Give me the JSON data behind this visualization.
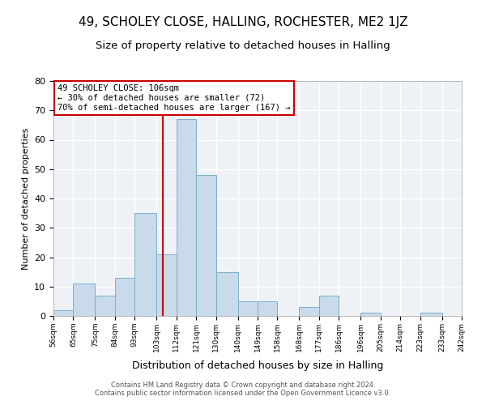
{
  "title": "49, SCHOLEY CLOSE, HALLING, ROCHESTER, ME2 1JZ",
  "subtitle": "Size of property relative to detached houses in Halling",
  "xlabel": "Distribution of detached houses by size in Halling",
  "ylabel": "Number of detached properties",
  "bar_color": "#c9daea",
  "bar_edge_color": "#7aafc8",
  "bg_color": "#eef2f7",
  "grid_color": "#ffffff",
  "vline_x": 106,
  "vline_color": "#cc0000",
  "annotation_line1": "49 SCHOLEY CLOSE: 106sqm",
  "annotation_line2": "← 30% of detached houses are smaller (72)",
  "annotation_line3": "70% of semi-detached houses are larger (167) →",
  "annotation_box_color": "white",
  "annotation_box_edge_color": "#cc0000",
  "bin_edges": [
    56,
    65,
    75,
    84,
    93,
    103,
    112,
    121,
    130,
    140,
    149,
    158,
    168,
    177,
    186,
    196,
    205,
    214,
    223,
    233,
    242
  ],
  "counts": [
    2,
    11,
    7,
    13,
    35,
    21,
    67,
    48,
    15,
    5,
    5,
    0,
    3,
    7,
    0,
    1,
    0,
    0,
    1,
    0
  ],
  "tick_labels": [
    "56sqm",
    "65sqm",
    "75sqm",
    "84sqm",
    "93sqm",
    "103sqm",
    "112sqm",
    "121sqm",
    "130sqm",
    "140sqm",
    "149sqm",
    "158sqm",
    "168sqm",
    "177sqm",
    "186sqm",
    "196sqm",
    "205sqm",
    "214sqm",
    "223sqm",
    "233sqm",
    "242sqm"
  ],
  "ylim": [
    0,
    80
  ],
  "yticks": [
    0,
    10,
    20,
    30,
    40,
    50,
    60,
    70,
    80
  ],
  "footer_text": "Contains HM Land Registry data © Crown copyright and database right 2024.\nContains public sector information licensed under the Open Government Licence v3.0.",
  "figsize": [
    6.0,
    5.0
  ],
  "dpi": 100
}
